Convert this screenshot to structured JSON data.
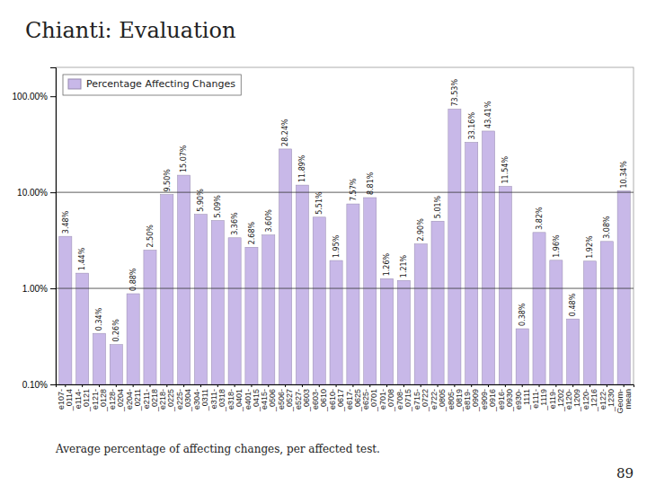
{
  "chart_data": {
    "type": "bar",
    "title": "Chianti:  Evaluation",
    "subtitle": "Average percentage of affecting changes, per affected test.",
    "page_number": "89",
    "categories": [
      "e107-\n_0114",
      "e114-\n_0121",
      "e121-\n_0128",
      "e128-\n_0204",
      "e204-\n_0211",
      "e211-\n_0218",
      "e218-\n_0225",
      "e225-\n_0304",
      "e304-\n_0311",
      "e311-\n_0318",
      "e318-\n_0401",
      "e401-\n_0415",
      "e415-\n_0506",
      "e506-\n_0527",
      "e527-\n_0603",
      "e603-\n_0610",
      "e610-\n_0617",
      "e617-\n_0625",
      "e625-\n_0701",
      "e701-\n_0708",
      "e708-\n_0715",
      "e715-\n_0722",
      "e722-\n_0805",
      "e805-\n_0819",
      "e819-\n_0909",
      "e909-\n_0916",
      "e916-\n_0930",
      "e930-\n_1111",
      "e111-\n_1119",
      "e119-\n_1202",
      "e120-\n_1209",
      "e120-\n_1216",
      "e122-\n_1230",
      "Geom-\nmean"
    ],
    "series": [
      {
        "name": "Percentage Affecting Changes",
        "color": "#c8b8e8",
        "values": [
          3.48,
          1.44,
          0.34,
          0.26,
          0.88,
          2.5,
          9.5,
          15.07,
          5.9,
          5.09,
          3.36,
          2.68,
          3.6,
          28.24,
          11.89,
          5.51,
          1.95,
          7.57,
          8.81,
          1.26,
          1.21,
          2.9,
          5.01,
          73.53,
          33.16,
          43.41,
          11.54,
          0.38,
          3.82,
          1.96,
          0.48,
          1.92,
          3.08,
          10.34
        ],
        "value_labels": [
          "3.48%",
          "1.44%",
          "0.34%",
          "0.26%",
          "0.88%",
          "2.50%",
          "9.50%",
          "15.07%",
          "5.90%",
          "5.09%",
          "3.36%",
          "2.68%",
          "3.60%",
          "28.24%",
          "11.89%",
          "5.51%",
          "1.95%",
          "7.57%",
          "8.81%",
          "1.26%",
          "1.21%",
          "2.90%",
          "5.01%",
          "73.53%",
          "33.16%",
          "43.41%",
          "11.54%",
          "0.38%",
          "3.82%",
          "1.96%",
          "0.48%",
          "1.92%",
          "3.08%",
          "10.34%"
        ]
      }
    ],
    "log": "y",
    "ylim": [
      0.1,
      200.0
    ],
    "yticks": [
      {
        "value": 0.1,
        "label": "0.10%"
      },
      {
        "value": 1.0,
        "label": "1.00%"
      },
      {
        "value": 10.0,
        "label": "10.00%"
      },
      {
        "value": 100.0,
        "label": "100.00%"
      }
    ],
    "hlines": [
      1.0,
      10.0
    ],
    "data_labels": true,
    "legend": "top-left",
    "grid": false
  }
}
